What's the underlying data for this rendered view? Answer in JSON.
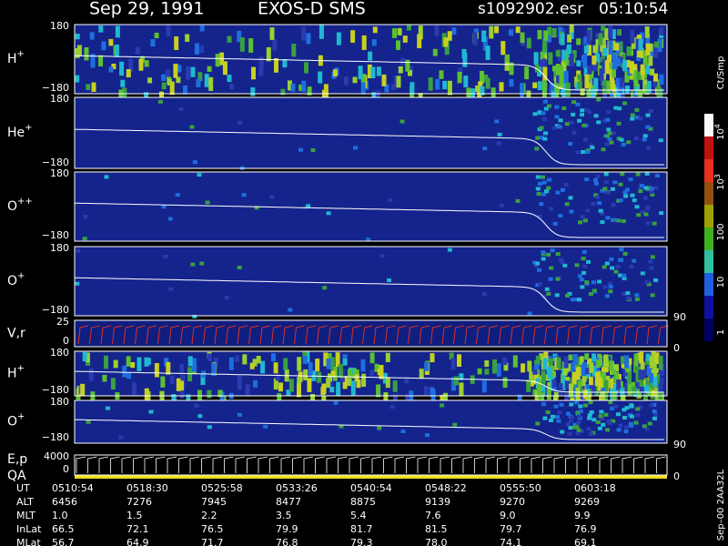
{
  "header": {
    "date": "Sep 29, 1991",
    "instrument": "EXOS-D SMS",
    "file": "s1092902.esr",
    "time": "05:10:54"
  },
  "panels": [
    {
      "label": "H",
      "sup": "+",
      "top": "180",
      "bottom": "−180"
    },
    {
      "label": "He",
      "sup": "+",
      "top": "180",
      "bottom": "−180"
    },
    {
      "label": "O",
      "sup": "++",
      "top": "180",
      "bottom": "−180"
    },
    {
      "label": "O",
      "sup": "+",
      "top": "180",
      "bottom": "−180",
      "right": "90"
    },
    {
      "label": "V,r",
      "top": "25",
      "bottom": "0",
      "right": "0"
    },
    {
      "label": "H",
      "sup": "+",
      "top": "180",
      "bottom": "−180"
    },
    {
      "label": "O",
      "sup": "+",
      "top": "180",
      "bottom": "−180",
      "right": "90"
    },
    {
      "label": "E,p",
      "label2": "QA",
      "top": "4000",
      "bottom": "0",
      "right": "0"
    }
  ],
  "colorbar": {
    "unit": "Ct/Smp",
    "ticks": [
      {
        "base": "10",
        "exp": "4"
      },
      {
        "base": "10",
        "exp": "3"
      },
      {
        "base": "100"
      },
      {
        "base": "10"
      },
      {
        "base": "1"
      }
    ]
  },
  "footer": "Sep–00  2AA32L",
  "table": {
    "rows": [
      [
        "UT",
        "0510:54",
        "0518:30",
        "0525:58",
        "0533:26",
        "0540:54",
        "0548:22",
        "0555:50",
        "0603:18"
      ],
      [
        "ALT",
        "6456",
        "7276",
        "7945",
        "8477",
        "8875",
        "9139",
        "9270",
        "9269"
      ],
      [
        "MLT",
        "1.0",
        "1.5",
        "2.2",
        "3.5",
        "5.4",
        "7.6",
        "9.0",
        "9.9"
      ],
      [
        "InLat",
        "66.5",
        "72.1",
        "76.5",
        "79.9",
        "81.7",
        "81.5",
        "79.7",
        "76.9"
      ],
      [
        "MLat",
        "56.7",
        "64.9",
        "71.7",
        "76.8",
        "79.3",
        "78.0",
        "74.1",
        "69.1"
      ]
    ]
  }
}
